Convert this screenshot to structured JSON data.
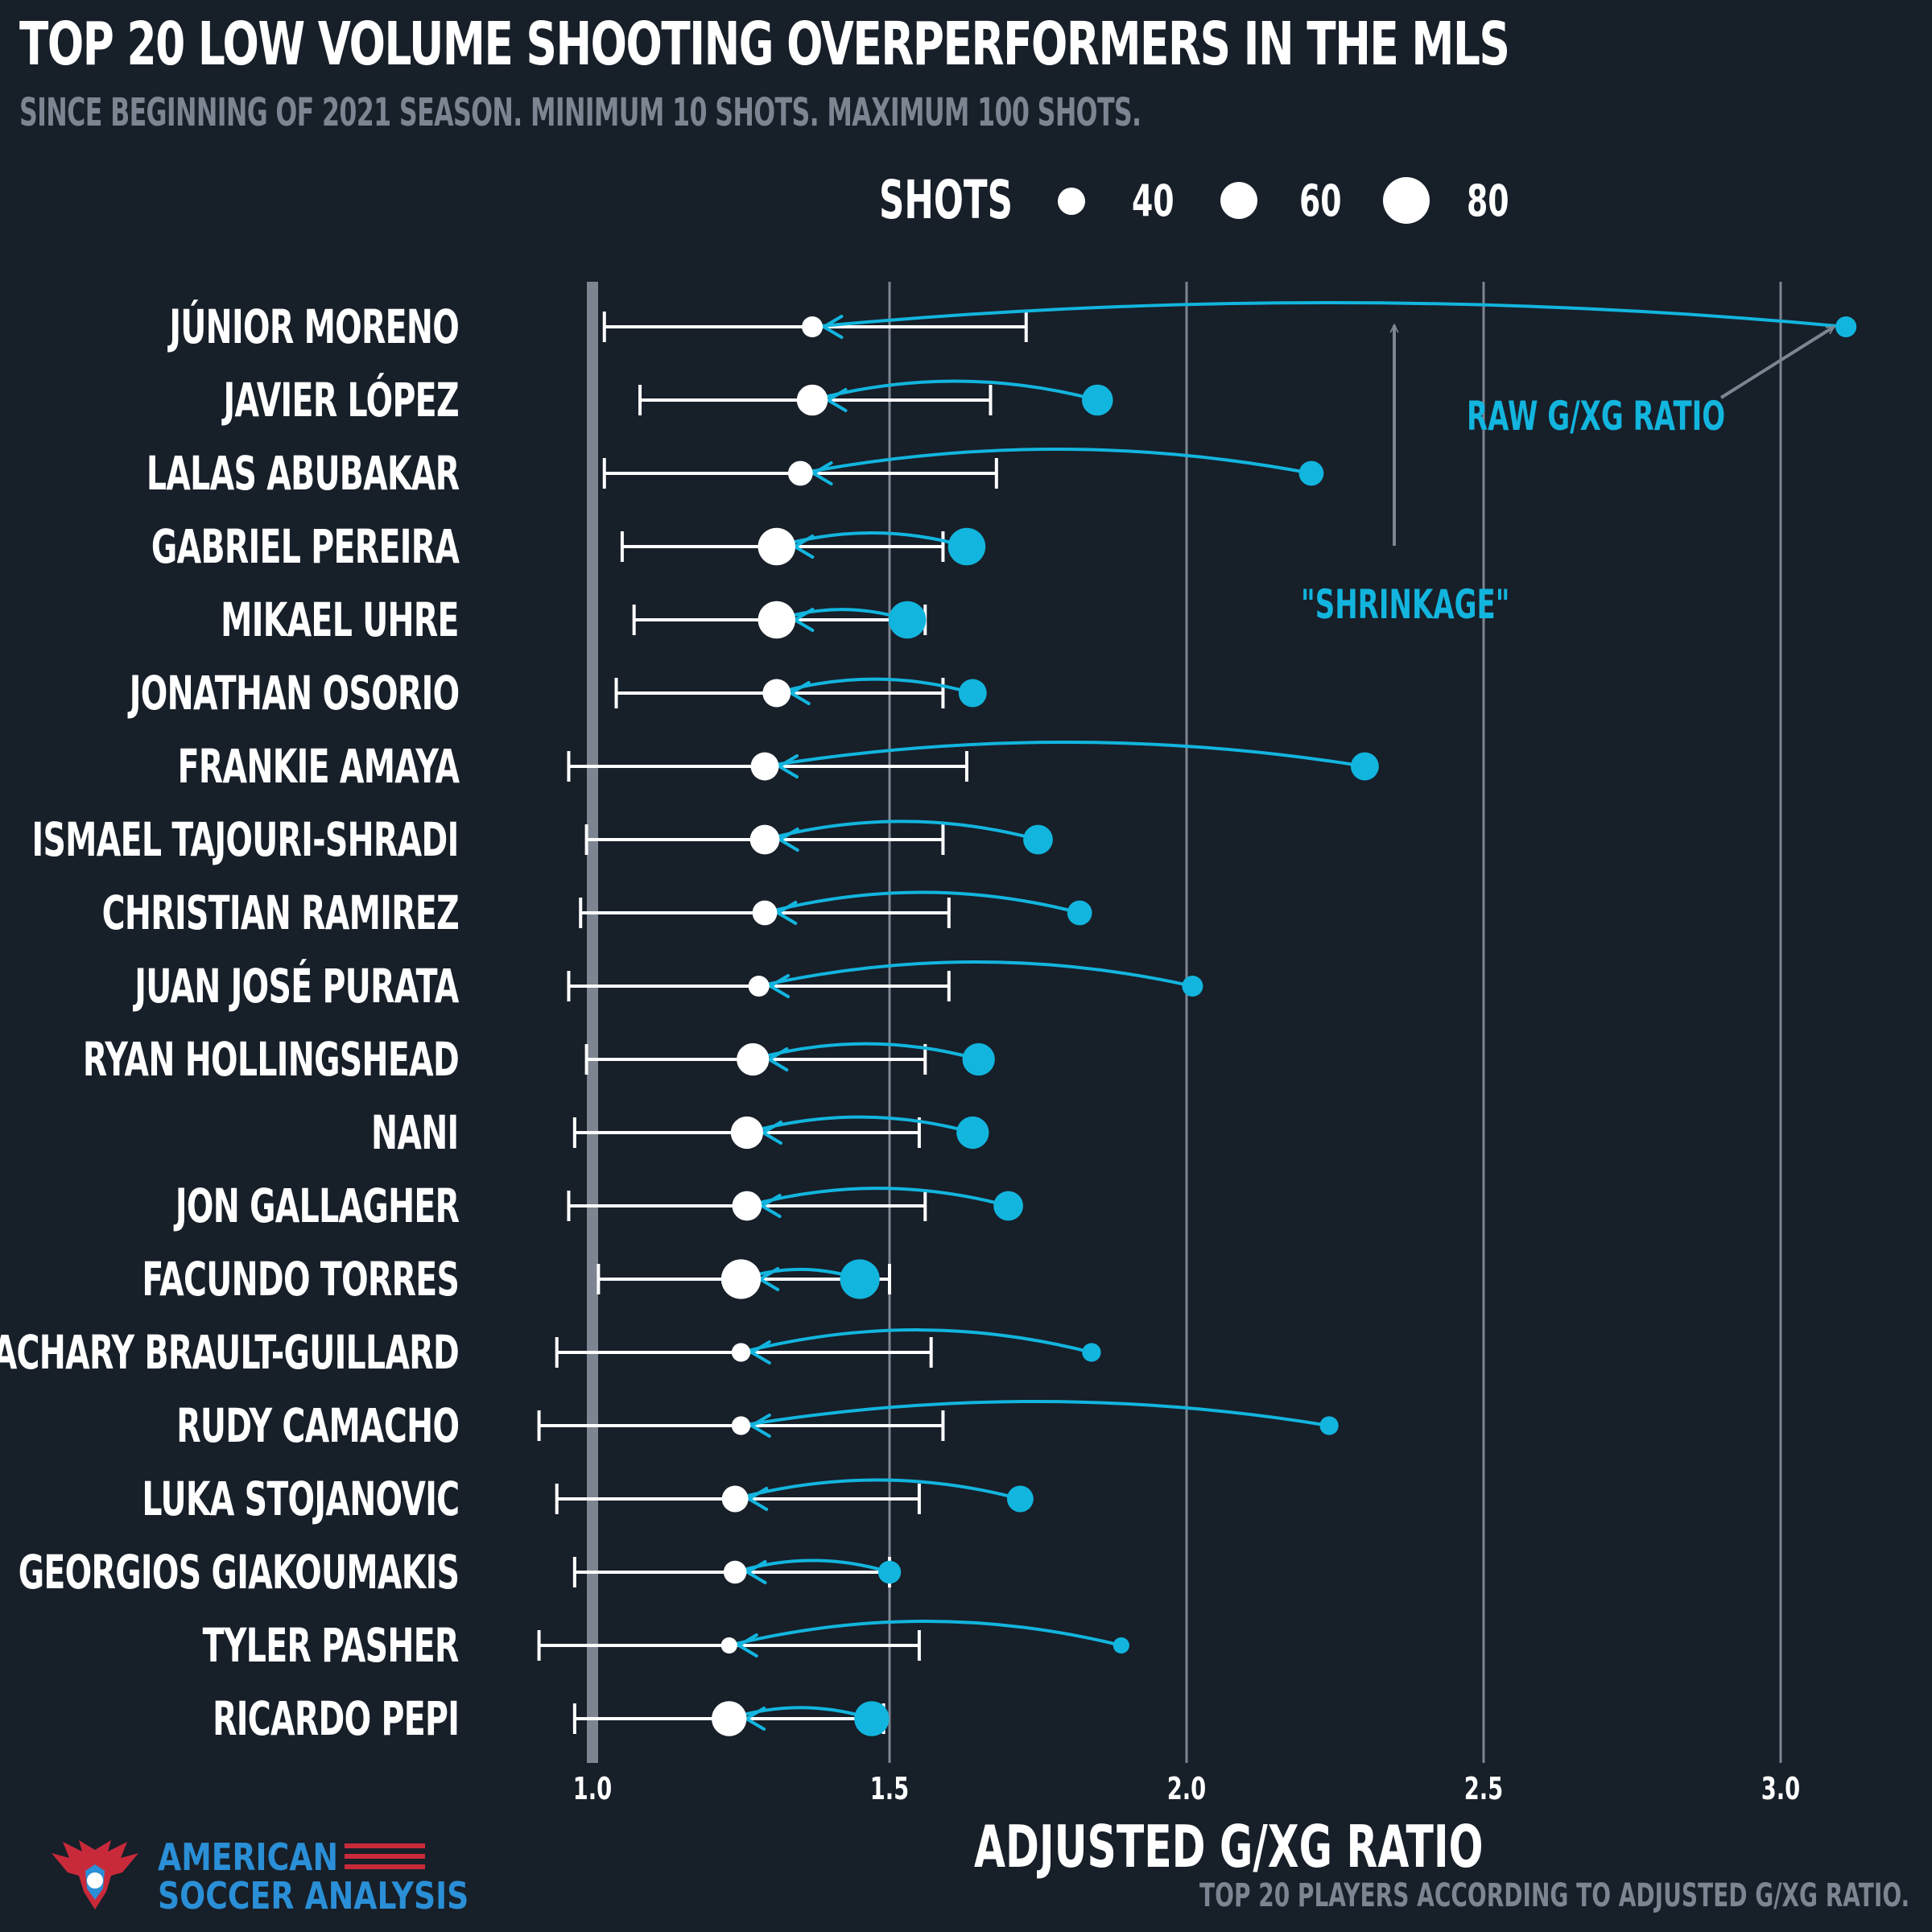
{
  "title": "TOP 20 LOW VOLUME SHOOTING OVERPERFORMERS IN THE MLS",
  "subtitle": "SINCE BEGINNING OF 2021 SEASON. MINIMUM 10 SHOTS. MAXIMUM 100 SHOTS.",
  "legend": {
    "title": "SHOTS",
    "items": [
      {
        "label": "40",
        "shots": 40
      },
      {
        "label": "60",
        "shots": 60
      },
      {
        "label": "80",
        "shots": 80
      }
    ]
  },
  "annotations": {
    "raw": "RAW G/XG RATIO",
    "shrinkage": "\"SHRINKAGE\""
  },
  "caption": "TOP 20 PLAYERS ACCORDING TO ADJUSTED G/XG RATIO.",
  "logo": {
    "line1": "AMERICAN",
    "line2": "SOCCER ANALYSIS"
  },
  "colors": {
    "background": "#171f29",
    "adjusted": "#ffffff",
    "raw": "#12b5de",
    "grid": "#7c8591",
    "muted": "#7c8591"
  },
  "chart_data": {
    "type": "dot-range",
    "xlabel": "ADJUSTED G/XG RATIO",
    "xlim": [
      0.9,
      3.15
    ],
    "xticks": [
      {
        "value": 1.0,
        "label": "1.0"
      },
      {
        "value": 1.5,
        "label": "1.5"
      },
      {
        "value": 2.0,
        "label": "2.0"
      },
      {
        "value": 2.5,
        "label": "2.5"
      },
      {
        "value": 3.0,
        "label": "3.0"
      }
    ],
    "reference_line": 1.0,
    "players": [
      {
        "name": "JÚNIOR MORENO",
        "adjusted": 1.37,
        "ci_low": 1.02,
        "ci_high": 1.73,
        "raw": 3.11,
        "shots": 25
      },
      {
        "name": "JAVIER LÓPEZ",
        "adjusted": 1.37,
        "ci_low": 1.08,
        "ci_high": 1.67,
        "raw": 1.85,
        "shots": 55
      },
      {
        "name": "LALAS ABUBAKAR",
        "adjusted": 1.35,
        "ci_low": 1.02,
        "ci_high": 1.68,
        "raw": 2.21,
        "shots": 35
      },
      {
        "name": "GABRIEL PEREIRA",
        "adjusted": 1.31,
        "ci_low": 1.05,
        "ci_high": 1.59,
        "raw": 1.63,
        "shots": 80
      },
      {
        "name": "MIKAEL UHRE",
        "adjusted": 1.31,
        "ci_low": 1.07,
        "ci_high": 1.56,
        "raw": 1.53,
        "shots": 80
      },
      {
        "name": "JONATHAN OSORIO",
        "adjusted": 1.31,
        "ci_low": 1.04,
        "ci_high": 1.59,
        "raw": 1.64,
        "shots": 45
      },
      {
        "name": "FRANKIE AMAYA",
        "adjusted": 1.29,
        "ci_low": 0.96,
        "ci_high": 1.63,
        "raw": 2.3,
        "shots": 45
      },
      {
        "name": "ISMAEL TAJOURI-SHRADI",
        "adjusted": 1.29,
        "ci_low": 0.99,
        "ci_high": 1.59,
        "raw": 1.75,
        "shots": 50
      },
      {
        "name": "CHRISTIAN RAMIREZ",
        "adjusted": 1.29,
        "ci_low": 0.98,
        "ci_high": 1.6,
        "raw": 1.82,
        "shots": 35
      },
      {
        "name": "JUAN JOSÉ PURATA",
        "adjusted": 1.28,
        "ci_low": 0.96,
        "ci_high": 1.6,
        "raw": 2.01,
        "shots": 25
      },
      {
        "name": "RYAN HOLLINGSHEAD",
        "adjusted": 1.27,
        "ci_low": 0.99,
        "ci_high": 1.56,
        "raw": 1.65,
        "shots": 60
      },
      {
        "name": "NANI",
        "adjusted": 1.26,
        "ci_low": 0.97,
        "ci_high": 1.55,
        "raw": 1.64,
        "shots": 60
      },
      {
        "name": "JON GALLAGHER",
        "adjusted": 1.26,
        "ci_low": 0.96,
        "ci_high": 1.56,
        "raw": 1.7,
        "shots": 50
      },
      {
        "name": "FACUNDO TORRES",
        "adjusted": 1.25,
        "ci_low": 1.01,
        "ci_high": 1.5,
        "raw": 1.45,
        "shots": 90
      },
      {
        "name": "ZACHARY BRAULT-GUILLARD",
        "adjusted": 1.25,
        "ci_low": 0.94,
        "ci_high": 1.57,
        "raw": 1.84,
        "shots": 20
      },
      {
        "name": "RUDY CAMACHO",
        "adjusted": 1.25,
        "ci_low": 0.91,
        "ci_high": 1.59,
        "raw": 2.24,
        "shots": 20
      },
      {
        "name": "LUKA STOJANOVIC",
        "adjusted": 1.24,
        "ci_low": 0.94,
        "ci_high": 1.55,
        "raw": 1.72,
        "shots": 40
      },
      {
        "name": "GEORGIOS GIAKOUMAKIS",
        "adjusted": 1.24,
        "ci_low": 0.97,
        "ci_high": 1.5,
        "raw": 1.5,
        "shots": 30
      },
      {
        "name": "TYLER PASHER",
        "adjusted": 1.23,
        "ci_low": 0.91,
        "ci_high": 1.55,
        "raw": 1.89,
        "shots": 15
      },
      {
        "name": "RICARDO PEPI",
        "adjusted": 1.23,
        "ci_low": 0.97,
        "ci_high": 1.49,
        "raw": 1.47,
        "shots": 70
      }
    ]
  }
}
